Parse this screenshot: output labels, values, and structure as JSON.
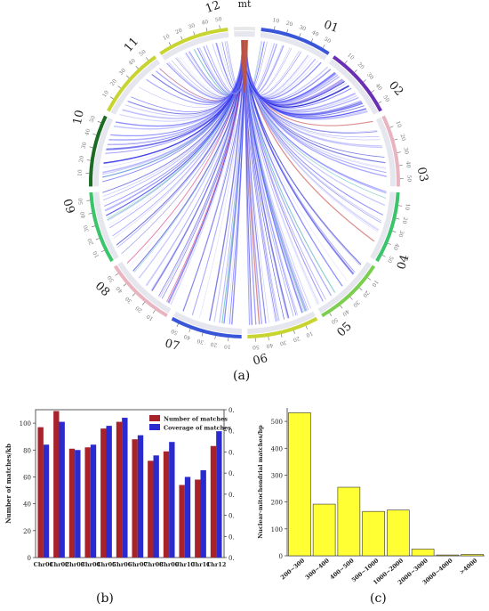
{
  "figure": {
    "panel_a_label": "(a)",
    "panel_b_label": "(b)",
    "panel_c_label": "(c)"
  },
  "chart_data": [
    {
      "type": "circos",
      "segments": [
        {
          "label": "mt",
          "color": "#e8e8e8"
        },
        {
          "label": "01",
          "color": "#3a56d8"
        },
        {
          "label": "02",
          "color": "#6a2fb5"
        },
        {
          "label": "03",
          "color": "#e8b4c0"
        },
        {
          "label": "04",
          "color": "#3cc46a"
        },
        {
          "label": "05",
          "color": "#7ccf4e"
        },
        {
          "label": "06",
          "color": "#c8d430"
        },
        {
          "label": "07",
          "color": "#3a56d8"
        },
        {
          "label": "08",
          "color": "#e8b4c0"
        },
        {
          "label": "09",
          "color": "#3cc46a"
        },
        {
          "label": "10",
          "color": "#1c6b22"
        },
        {
          "label": "11",
          "color": "#c8d430"
        },
        {
          "label": "12",
          "color": "#c8d430"
        }
      ],
      "tick_labels": [
        "10",
        "20",
        "30",
        "40",
        "50"
      ],
      "link_colors": [
        "#1a1ad0",
        "#3333ff",
        "#6666ff",
        "#9999ff",
        "#b0b0ff",
        "#d01a6a",
        "#20a0a0",
        "#c03030"
      ]
    },
    {
      "type": "bar",
      "categories": [
        "Chr01",
        "Chr02",
        "Chr03",
        "Chr04",
        "Chr05",
        "Chr06",
        "Chr07",
        "Chr08",
        "Chr09",
        "Chr10",
        "Chr11",
        "Chr12"
      ],
      "series": [
        {
          "name": "Number of matches",
          "color": "#a8222a",
          "values": [
            97,
            109,
            81,
            82,
            96,
            101,
            88,
            72,
            79,
            54,
            58,
            83
          ]
        },
        {
          "name": "Coverage of matches",
          "color": "#2a2acf",
          "values": [
            84,
            101,
            80,
            84,
            98,
            104,
            91,
            76,
            86,
            60,
            65,
            94
          ]
        }
      ],
      "ylabel": "Number of matches/kb",
      "ylim": [
        0,
        110
      ],
      "yticks": [
        "0",
        "20",
        "40",
        "60",
        "80",
        "100"
      ],
      "right_yticks": [
        "0.",
        "0.",
        "0.",
        "0.",
        "0.",
        "0.",
        "0.",
        "0."
      ],
      "legend_position": "top-right"
    },
    {
      "type": "bar",
      "categories": [
        "200~300",
        "300~400",
        "400~500",
        "500~1000",
        "1000~2000",
        "2000~3000",
        "3000~4000",
        ">4000"
      ],
      "values": [
        532,
        192,
        255,
        165,
        170,
        25,
        3,
        5
      ],
      "color": "#ffff33",
      "ylabel": "Nuclear-mitochondrial matches/bp",
      "ylim": [
        0,
        550
      ],
      "yticks": [
        "0",
        "100",
        "200",
        "300",
        "400",
        "500"
      ]
    }
  ]
}
